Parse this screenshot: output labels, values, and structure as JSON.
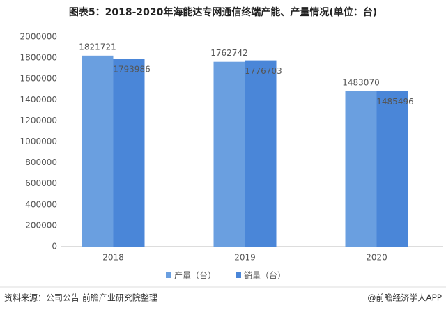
{
  "chart_data": {
    "type": "bar",
    "title": "图表5：2018-2020年海能达专网通信终端产能、产量情况(单位：台)",
    "categories": [
      "2018",
      "2019",
      "2020"
    ],
    "series": [
      {
        "name": "产量（台）",
        "color": "#6a9fe0",
        "values": [
          1821721,
          1762742,
          1483070
        ]
      },
      {
        "name": "销量（台）",
        "color": "#4a86d8",
        "values": [
          1793986,
          1776703,
          1485496
        ]
      }
    ],
    "ylim": [
      0,
      2000000
    ],
    "yticks": [
      0,
      200000,
      400000,
      600000,
      800000,
      1000000,
      1200000,
      1400000,
      1600000,
      1800000,
      2000000
    ],
    "grid": false,
    "legend": "bottom"
  },
  "footer": {
    "source": "资料来源：公司公告 前瞻产业研究院整理",
    "credit": "@前瞻经济学人APP"
  }
}
